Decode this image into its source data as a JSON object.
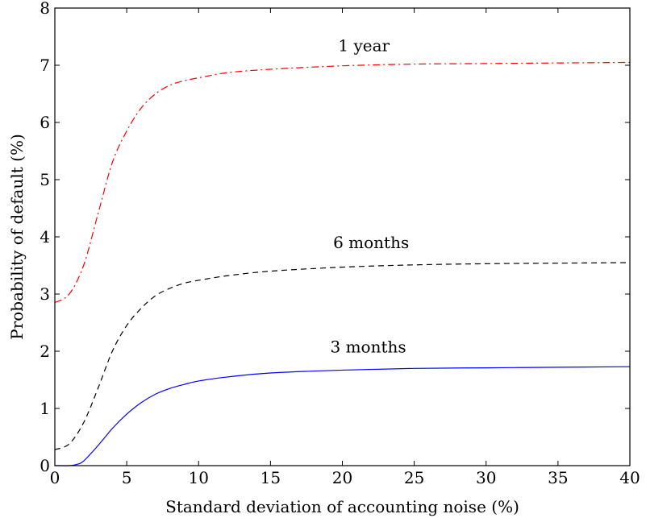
{
  "chart_data": {
    "type": "line",
    "title": "",
    "xlabel": "Standard deviation of accounting noise (%)",
    "ylabel": "Probability of default (%)",
    "xlim": [
      0,
      40
    ],
    "ylim": [
      0,
      8
    ],
    "xticks": [
      0,
      5,
      10,
      15,
      20,
      25,
      30,
      35,
      40
    ],
    "yticks": [
      0,
      1,
      2,
      3,
      4,
      5,
      6,
      7,
      8
    ],
    "grid": false,
    "legend": "none",
    "series": [
      {
        "color": "#ff0000",
        "dash": "dash-dot",
        "x": [
          0,
          1,
          2,
          3,
          4,
          5,
          6,
          7,
          8,
          9,
          10,
          12,
          15,
          20,
          25,
          30,
          35,
          40
        ],
        "y": [
          2.85,
          3.0,
          3.5,
          4.4,
          5.3,
          5.85,
          6.25,
          6.5,
          6.65,
          6.73,
          6.78,
          6.87,
          6.93,
          6.99,
          7.02,
          7.03,
          7.04,
          7.05
        ]
      },
      {
        "color": "#000000",
        "dash": "dashed",
        "x": [
          0,
          1,
          2,
          3,
          4,
          5,
          6,
          7,
          8,
          9,
          10,
          12,
          15,
          20,
          25,
          30,
          35,
          40
        ],
        "y": [
          0.28,
          0.38,
          0.75,
          1.35,
          2.0,
          2.45,
          2.75,
          2.97,
          3.1,
          3.19,
          3.24,
          3.32,
          3.4,
          3.47,
          3.51,
          3.53,
          3.54,
          3.55
        ]
      },
      {
        "color": "#0000ff",
        "dash": "solid",
        "x": [
          0,
          1,
          1.5,
          2,
          3,
          4,
          5,
          6,
          7,
          8,
          9,
          10,
          12,
          15,
          20,
          25,
          30,
          35,
          40
        ],
        "y": [
          0.0,
          0.0,
          0.02,
          0.08,
          0.35,
          0.65,
          0.9,
          1.1,
          1.25,
          1.35,
          1.42,
          1.48,
          1.55,
          1.62,
          1.67,
          1.7,
          1.71,
          1.72,
          1.73
        ]
      }
    ],
    "annotations": [
      {
        "text": "1 year",
        "x": 21.5,
        "y": 7.25
      },
      {
        "text": "6 months",
        "x": 22.0,
        "y": 3.8
      },
      {
        "text": "3 months",
        "x": 21.8,
        "y": 1.98
      }
    ]
  }
}
